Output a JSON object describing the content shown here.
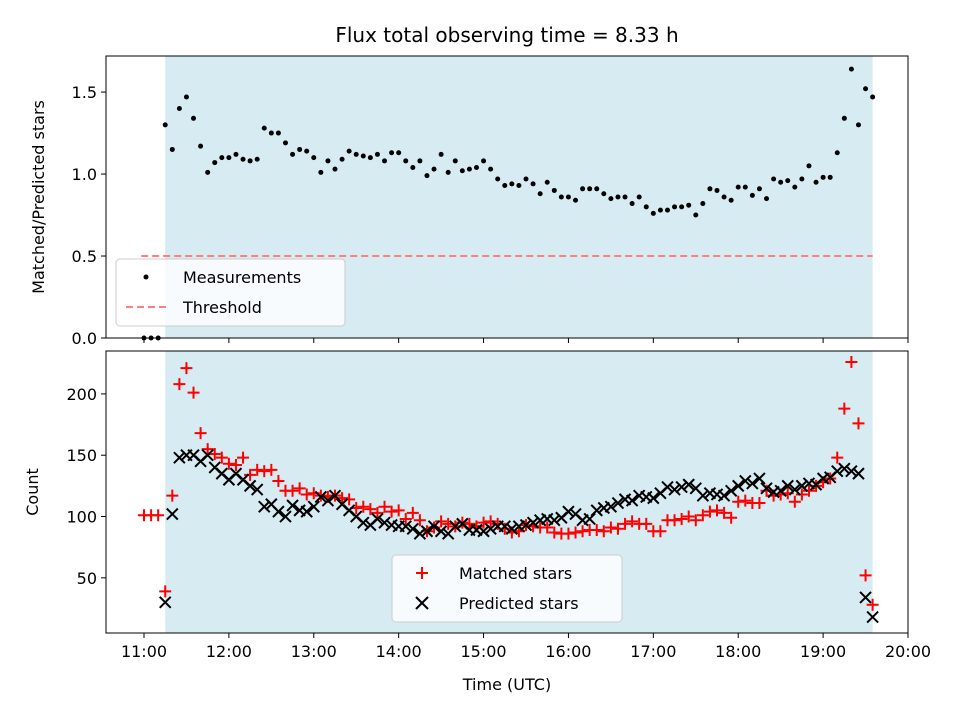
{
  "chart_data": [
    {
      "type": "scatter",
      "title": "Flux total observing time = 8.33 h",
      "xlabel": "",
      "ylabel": "Matched/Predicted stars",
      "ylim": [
        0,
        1.72
      ],
      "yticks": [
        "0.0",
        "0.5",
        "1.0",
        "1.5"
      ],
      "ytick_values": [
        0,
        0.5,
        1.0,
        1.5
      ],
      "observing_window": [
        "11:15",
        "19:35"
      ],
      "legend": {
        "placement": "lower-left",
        "entries": [
          "Measurements",
          "Threshold"
        ]
      },
      "series": [
        {
          "name": "Measurements",
          "marker": "dot",
          "color": "#000000",
          "x": [
            "11:00",
            "11:05",
            "11:10",
            "11:15",
            "11:20",
            "11:25",
            "11:30",
            "11:35",
            "11:40",
            "11:45",
            "11:50",
            "11:55",
            "12:00",
            "12:05",
            "12:10",
            "12:15",
            "12:20",
            "12:25",
            "12:30",
            "12:35",
            "12:40",
            "12:45",
            "12:50",
            "12:55",
            "13:00",
            "13:05",
            "13:10",
            "13:15",
            "13:20",
            "13:25",
            "13:30",
            "13:35",
            "13:40",
            "13:45",
            "13:50",
            "13:55",
            "14:00",
            "14:05",
            "14:10",
            "14:15",
            "14:20",
            "14:25",
            "14:30",
            "14:35",
            "14:40",
            "14:45",
            "14:50",
            "14:55",
            "15:00",
            "15:05",
            "15:10",
            "15:15",
            "15:20",
            "15:25",
            "15:30",
            "15:35",
            "15:40",
            "15:45",
            "15:50",
            "15:55",
            "16:00",
            "16:05",
            "16:10",
            "16:15",
            "16:20",
            "16:25",
            "16:30",
            "16:35",
            "16:40",
            "16:45",
            "16:50",
            "16:55",
            "17:00",
            "17:05",
            "17:10",
            "17:15",
            "17:20",
            "17:25",
            "17:30",
            "17:35",
            "17:40",
            "17:45",
            "17:50",
            "17:55",
            "18:00",
            "18:05",
            "18:10",
            "18:15",
            "18:20",
            "18:25",
            "18:30",
            "18:35",
            "18:40",
            "18:45",
            "18:50",
            "18:55",
            "19:00",
            "19:05",
            "19:10",
            "19:15",
            "19:20",
            "19:25",
            "19:30",
            "19:35"
          ],
          "values": [
            0,
            0,
            0,
            1.3,
            1.15,
            1.4,
            1.47,
            1.34,
            1.17,
            1.01,
            1.07,
            1.1,
            1.1,
            1.12,
            1.09,
            1.08,
            1.09,
            1.28,
            1.25,
            1.25,
            1.19,
            1.12,
            1.15,
            1.14,
            1.1,
            1.01,
            1.08,
            1.03,
            1.09,
            1.14,
            1.12,
            1.11,
            1.1,
            1.12,
            1.08,
            1.13,
            1.13,
            1.08,
            1.04,
            1.08,
            0.99,
            1.03,
            1.12,
            1.01,
            1.08,
            1.02,
            1.03,
            1.04,
            1.08,
            1.03,
            0.97,
            0.93,
            0.94,
            0.93,
            0.97,
            0.94,
            0.88,
            0.95,
            0.9,
            0.86,
            0.86,
            0.84,
            0.91,
            0.91,
            0.91,
            0.88,
            0.85,
            0.86,
            0.86,
            0.82,
            0.86,
            0.8,
            0.76,
            0.78,
            0.78,
            0.8,
            0.8,
            0.81,
            0.75,
            0.82,
            0.91,
            0.9,
            0.86,
            0.84,
            0.92,
            0.92,
            0.87,
            0.91,
            0.85,
            0.97,
            0.95,
            0.96,
            0.92,
            0.97,
            1.05,
            0.95,
            0.98,
            0.98,
            1.13,
            1.34,
            1.64,
            1.3,
            1.52,
            1.47
          ]
        },
        {
          "name": "Threshold",
          "marker": "dashed-line",
          "color": "#ff7f7f",
          "x": [
            "10:58",
            "19:35"
          ],
          "values": [
            0.5,
            0.5
          ]
        }
      ]
    },
    {
      "type": "scatter",
      "title": "",
      "xlabel": "Time (UTC)",
      "ylabel": "Count",
      "ylim": [
        5,
        235
      ],
      "yticks": [
        "50",
        "100",
        "150",
        "200"
      ],
      "ytick_values": [
        50,
        100,
        150,
        200
      ],
      "xticks": [
        "11:00",
        "12:00",
        "13:00",
        "14:00",
        "15:00",
        "16:00",
        "17:00",
        "18:00",
        "19:00",
        "20:00"
      ],
      "observing_window": [
        "11:15",
        "19:35"
      ],
      "legend": {
        "placement": "lower-center",
        "entries": [
          "Matched stars",
          "Predicted stars"
        ]
      },
      "series": [
        {
          "name": "Matched stars",
          "marker": "plus",
          "color": "#ff0000",
          "x": [
            "11:00",
            "11:05",
            "11:10",
            "11:15",
            "11:20",
            "11:25",
            "11:30",
            "11:35",
            "11:40",
            "11:45",
            "11:50",
            "11:55",
            "12:00",
            "12:05",
            "12:10",
            "12:15",
            "12:20",
            "12:25",
            "12:30",
            "12:35",
            "12:40",
            "12:45",
            "12:50",
            "12:55",
            "13:00",
            "13:05",
            "13:10",
            "13:15",
            "13:20",
            "13:25",
            "13:30",
            "13:35",
            "13:40",
            "13:45",
            "13:50",
            "13:55",
            "14:00",
            "14:05",
            "14:10",
            "14:15",
            "14:20",
            "14:25",
            "14:30",
            "14:35",
            "14:40",
            "14:45",
            "14:50",
            "14:55",
            "15:00",
            "15:05",
            "15:10",
            "15:15",
            "15:20",
            "15:25",
            "15:30",
            "15:35",
            "15:40",
            "15:45",
            "15:50",
            "15:55",
            "16:00",
            "16:05",
            "16:10",
            "16:15",
            "16:20",
            "16:25",
            "16:30",
            "16:35",
            "16:40",
            "16:45",
            "16:50",
            "16:55",
            "17:00",
            "17:05",
            "17:10",
            "17:15",
            "17:20",
            "17:25",
            "17:30",
            "17:35",
            "17:40",
            "17:45",
            "17:50",
            "17:55",
            "18:00",
            "18:05",
            "18:10",
            "18:15",
            "18:20",
            "18:25",
            "18:30",
            "18:35",
            "18:40",
            "18:45",
            "18:50",
            "18:55",
            "19:00",
            "19:05",
            "19:10",
            "19:15",
            "19:20",
            "19:25",
            "19:30",
            "19:35"
          ],
          "values": [
            101,
            101,
            101,
            39,
            117,
            208,
            221,
            201,
            168,
            155,
            151,
            148,
            143,
            142,
            148,
            134,
            138,
            137,
            138,
            129,
            121,
            121,
            123,
            118,
            119,
            117,
            116,
            117,
            115,
            114,
            107,
            108,
            106,
            103,
            108,
            104,
            105,
            98,
            103,
            97,
            88,
            91,
            96,
            94,
            92,
            95,
            94,
            92,
            95,
            96,
            94,
            90,
            87,
            88,
            93,
            92,
            91,
            91,
            87,
            86,
            86,
            87,
            88,
            89,
            89,
            88,
            91,
            90,
            94,
            96,
            94,
            94,
            88,
            88,
            97,
            97,
            98,
            100,
            97,
            101,
            104,
            105,
            103,
            99,
            112,
            113,
            111,
            111,
            121,
            117,
            118,
            119,
            112,
            118,
            121,
            125,
            128,
            131,
            148,
            188,
            226,
            176,
            52,
            28
          ]
        },
        {
          "name": "Predicted stars",
          "marker": "x",
          "color": "#000000",
          "x": [
            "11:15",
            "11:20",
            "11:25",
            "11:30",
            "11:35",
            "11:40",
            "11:45",
            "11:50",
            "11:55",
            "12:00",
            "12:05",
            "12:10",
            "12:15",
            "12:20",
            "12:25",
            "12:30",
            "12:35",
            "12:40",
            "12:45",
            "12:50",
            "12:55",
            "13:00",
            "13:05",
            "13:10",
            "13:15",
            "13:20",
            "13:25",
            "13:30",
            "13:35",
            "13:40",
            "13:45",
            "13:50",
            "13:55",
            "14:00",
            "14:05",
            "14:10",
            "14:15",
            "14:20",
            "14:25",
            "14:30",
            "14:35",
            "14:40",
            "14:45",
            "14:50",
            "14:55",
            "15:00",
            "15:05",
            "15:10",
            "15:15",
            "15:20",
            "15:25",
            "15:30",
            "15:35",
            "15:40",
            "15:45",
            "15:50",
            "15:55",
            "16:00",
            "16:05",
            "16:10",
            "16:15",
            "16:20",
            "16:25",
            "16:30",
            "16:35",
            "16:40",
            "16:45",
            "16:50",
            "16:55",
            "17:00",
            "17:05",
            "17:10",
            "17:15",
            "17:20",
            "17:25",
            "17:30",
            "17:35",
            "17:40",
            "17:45",
            "17:50",
            "17:55",
            "18:00",
            "18:05",
            "18:10",
            "18:15",
            "18:20",
            "18:25",
            "18:30",
            "18:35",
            "18:40",
            "18:45",
            "18:50",
            "18:55",
            "19:00",
            "19:05",
            "19:10",
            "19:15",
            "19:20",
            "19:25",
            "19:30",
            "19:35"
          ],
          "values": [
            30,
            102,
            148,
            150,
            150,
            145,
            150,
            140,
            135,
            130,
            135,
            130,
            125,
            122,
            108,
            110,
            104,
            100,
            109,
            105,
            104,
            108,
            116,
            113,
            117,
            110,
            105,
            100,
            95,
            93,
            98,
            95,
            93,
            92,
            92,
            90,
            86,
            88,
            92,
            88,
            86,
            92,
            94,
            89,
            89,
            88,
            90,
            92,
            92,
            90,
            92,
            93,
            95,
            97,
            98,
            97,
            99,
            104,
            102,
            97,
            98,
            105,
            107,
            108,
            111,
            114,
            113,
            117,
            116,
            115,
            119,
            124,
            122,
            124,
            126,
            123,
            117,
            119,
            118,
            117,
            121,
            125,
            129,
            127,
            131,
            123,
            120,
            121,
            125,
            122,
            125,
            127,
            126,
            131,
            132,
            137,
            139,
            137,
            135,
            34,
            18
          ]
        }
      ]
    }
  ]
}
